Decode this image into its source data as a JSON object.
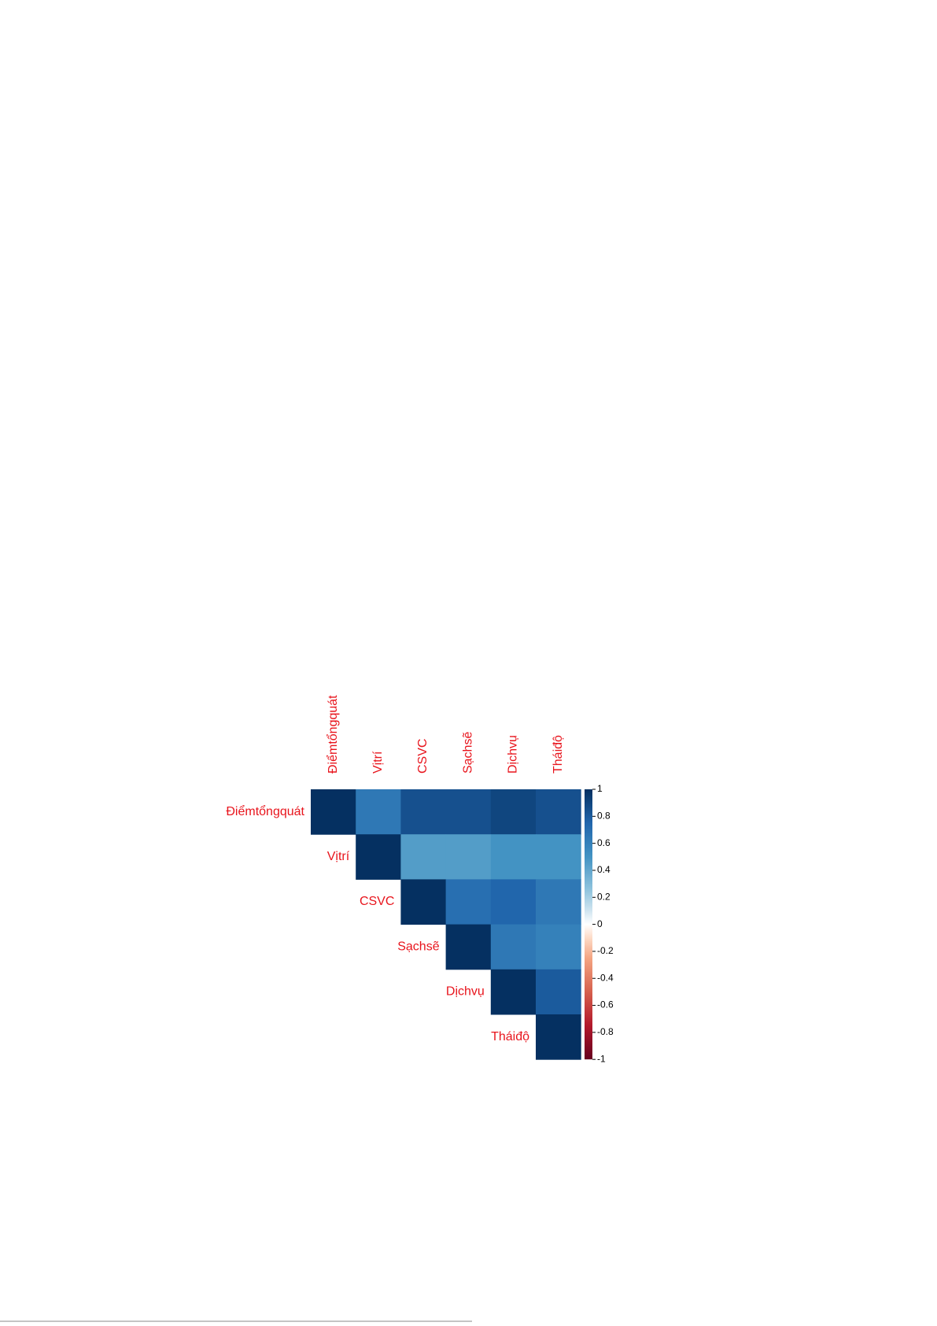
{
  "chart_data": {
    "type": "heatmap",
    "categories": [
      "Điểmtổngquát",
      "Vịtrí",
      "CSVC",
      "Sạchsẽ",
      "Dịchvụ",
      "Tháiđộ"
    ],
    "values": [
      [
        1,
        0.65,
        0.85,
        0.85,
        0.9,
        0.85
      ],
      [
        null,
        1,
        0.45,
        0.45,
        0.5,
        0.5
      ],
      [
        null,
        null,
        1,
        0.7,
        0.75,
        0.65
      ],
      [
        null,
        null,
        null,
        1,
        0.65,
        0.6
      ],
      [
        null,
        null,
        null,
        null,
        1,
        0.8
      ],
      [
        null,
        null,
        null,
        null,
        null,
        1
      ]
    ],
    "clim": [
      -1,
      1
    ],
    "cticks": [
      1,
      0.8,
      0.6,
      0.4,
      0.2,
      0,
      -0.2,
      -0.4,
      -0.6,
      -0.8,
      -1
    ]
  }
}
